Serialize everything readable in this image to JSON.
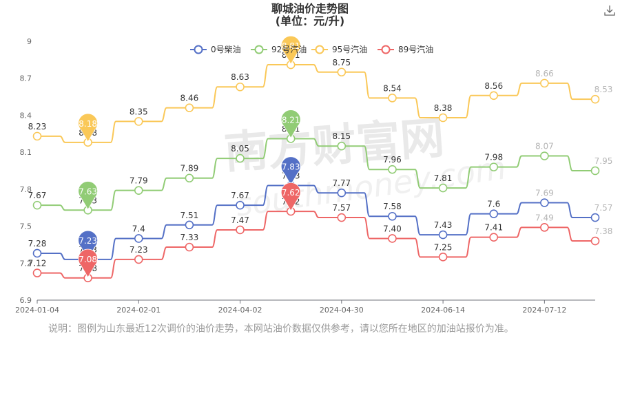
{
  "header": {
    "title": "聊城油价走势图",
    "subtitle": "(单位：元/升)"
  },
  "toolbar": {
    "download_icon": "download-icon"
  },
  "watermark": {
    "main": "南方财富网",
    "sub": "southmoney.com"
  },
  "note": "说明：图例为山东最近12次调价的油价走势，本网站油价数据仅供参考，请以您所在地区的加油站报价为准。",
  "chart_data": {
    "type": "line",
    "smooth": true,
    "title": "聊城油价走势图",
    "subtitle": "(单位：元/升)",
    "legend_position": "top",
    "grid": {
      "x": false,
      "y": false
    },
    "ylim": [
      6.9,
      9
    ],
    "y_ticks": [
      "6.9",
      "7.2",
      "7.5",
      "7.8",
      "8.1",
      "8.4",
      "8.7",
      "9"
    ],
    "x_tick_labels": [
      "2024-01-04",
      "2024-02-01",
      "2024-04-02",
      "2024-04-30",
      "2024-06-14",
      "2024-07-12"
    ],
    "x_tick_indices": [
      0,
      2,
      4,
      6,
      8,
      10
    ],
    "point_count": 12,
    "series": [
      {
        "name": "0号柴油",
        "color": "#5470c6",
        "values": [
          7.28,
          7.23,
          7.4,
          7.51,
          7.67,
          7.83,
          7.77,
          7.58,
          7.43,
          7.6,
          7.69,
          7.57
        ],
        "labels": [
          "7.28",
          "7.23",
          "7.4",
          "7.51",
          "7.67",
          "7.83",
          "7.77",
          "7.58",
          "7.43",
          "7.6",
          "7.69",
          "7.57"
        ]
      },
      {
        "name": "92号汽油",
        "color": "#91cc75",
        "values": [
          7.67,
          7.63,
          7.79,
          7.89,
          8.05,
          8.21,
          8.15,
          7.96,
          7.81,
          7.98,
          8.07,
          7.95
        ],
        "labels": [
          "7.67",
          "7.63",
          "7.79",
          "7.89",
          "8.05",
          "8.21",
          "8.15",
          "7.96",
          "7.81",
          "7.98",
          "8.07",
          "7.95"
        ]
      },
      {
        "name": "95号汽油",
        "color": "#fac858",
        "values": [
          8.23,
          8.18,
          8.35,
          8.46,
          8.63,
          8.81,
          8.75,
          8.54,
          8.38,
          8.56,
          8.66,
          8.53
        ],
        "labels": [
          "8.23",
          "8.18",
          "8.35",
          "8.46",
          "8.63",
          "8.81",
          "8.75",
          "8.54",
          "8.38",
          "8.56",
          "8.66",
          "8.53"
        ]
      },
      {
        "name": "89号汽油",
        "color": "#ee6666",
        "values": [
          7.12,
          7.08,
          7.23,
          7.33,
          7.47,
          7.62,
          7.57,
          7.4,
          7.25,
          7.41,
          7.49,
          7.38
        ],
        "labels": [
          "7.12",
          "7.08",
          "7.23",
          "7.33",
          "7.47",
          "7.62",
          "7.57",
          "7.40",
          "7.25",
          "7.41",
          "7.49",
          "7.38"
        ]
      }
    ],
    "markers": [
      {
        "series": 0,
        "index": 1,
        "label": "7.23"
      },
      {
        "series": 0,
        "index": 5,
        "label": "7.83"
      },
      {
        "series": 1,
        "index": 1,
        "label": "7.63"
      },
      {
        "series": 1,
        "index": 5,
        "label": "8.21"
      },
      {
        "series": 2,
        "index": 1,
        "label": "8.18"
      },
      {
        "series": 2,
        "index": 5,
        "label": "8.81"
      },
      {
        "series": 3,
        "index": 1,
        "label": "7.08"
      },
      {
        "series": 3,
        "index": 5,
        "label": "7.62"
      }
    ]
  }
}
